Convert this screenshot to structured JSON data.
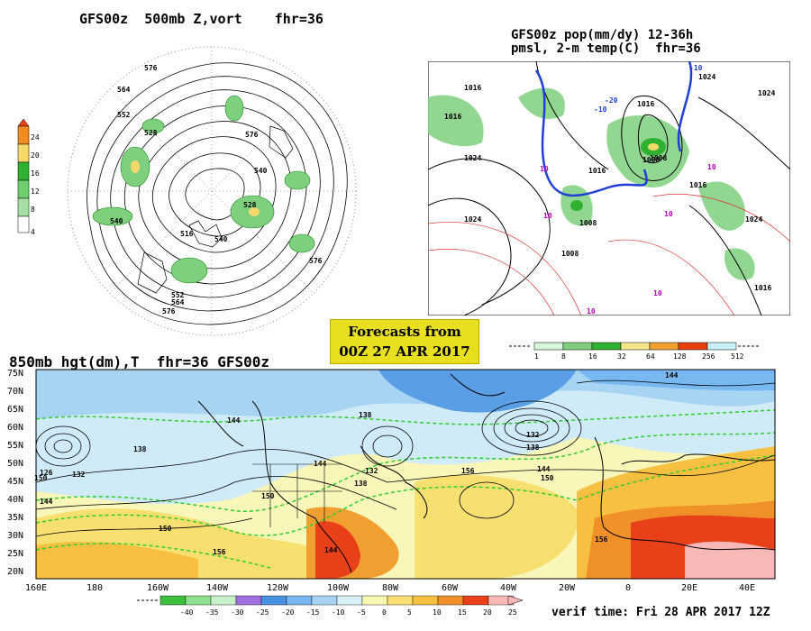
{
  "polar_panel": {
    "title": "GFS00z  500mb Z,vort    fhr=36",
    "contour_labels": [
      "576",
      "564",
      "552",
      "540",
      "528",
      "516",
      "540",
      "528",
      "576",
      "552",
      "564",
      "576",
      "540",
      "576"
    ],
    "colorbar_ticks": [
      "24",
      "20",
      "16",
      "12",
      "8",
      "4"
    ]
  },
  "precip_panel": {
    "title_line1": "GFS00z pop(mm/dy) 12-36h",
    "title_line2": "pmsl, 2-m temp(C)  fhr=36",
    "pressure_labels": [
      "1016",
      "1016",
      "1024",
      "1024",
      "1016",
      "1008",
      "1008",
      "1016",
      "1008",
      "1024",
      "1024",
      "1016",
      "1016",
      "1008",
      "1024"
    ],
    "temp_labels": [
      "-10",
      "-10",
      "-20",
      "10",
      "10",
      "10",
      "10",
      "10",
      "10"
    ],
    "colorbar_ticks": [
      "1",
      "8",
      "16",
      "32",
      "64",
      "128",
      "256",
      "512"
    ]
  },
  "forecast_box": {
    "line1": "Forecasts from",
    "line2": "00Z 27 APR 2017"
  },
  "bottom_panel": {
    "title": "850mb hgt(dm),T  fhr=36 GFS00z",
    "lat_labels": [
      "75N",
      "70N",
      "65N",
      "60N",
      "55N",
      "50N",
      "45N",
      "40N",
      "35N",
      "30N",
      "25N",
      "20N"
    ],
    "lon_labels": [
      "160E",
      "180",
      "160W",
      "140W",
      "120W",
      "100W",
      "80W",
      "60W",
      "40W",
      "20W",
      "0",
      "20E",
      "40E"
    ],
    "height_labels": [
      "144",
      "138",
      "132",
      "144",
      "150",
      "156",
      "138",
      "132",
      "144",
      "150",
      "156",
      "138",
      "144",
      "150",
      "156",
      "132",
      "138",
      "144",
      "150",
      "126",
      "144"
    ],
    "colorbar_ticks": [
      "-40",
      "-35",
      "-30",
      "-25",
      "-20",
      "-15",
      "-10",
      "-5",
      "0",
      "5",
      "10",
      "15",
      "20",
      "25"
    ],
    "colorbar_colors": [
      "#3cbf3c",
      "#8ee08e",
      "#c8f0c8",
      "#a070e0",
      "#4a90e0",
      "#78b8f0",
      "#a8d4f4",
      "#d8eef8",
      "#f8f8b0",
      "#f8e070",
      "#f8c040",
      "#f09028",
      "#e84018",
      "#f8b8b8"
    ],
    "verif_time": "verif time: Fri 28 APR 2017 12Z"
  },
  "colors": {
    "cold": "#3a8ae0",
    "cool": "#c8e6f8",
    "warm": "#f5c04a",
    "hot": "#e84a1a",
    "green_contour": "#2ecc2e"
  }
}
